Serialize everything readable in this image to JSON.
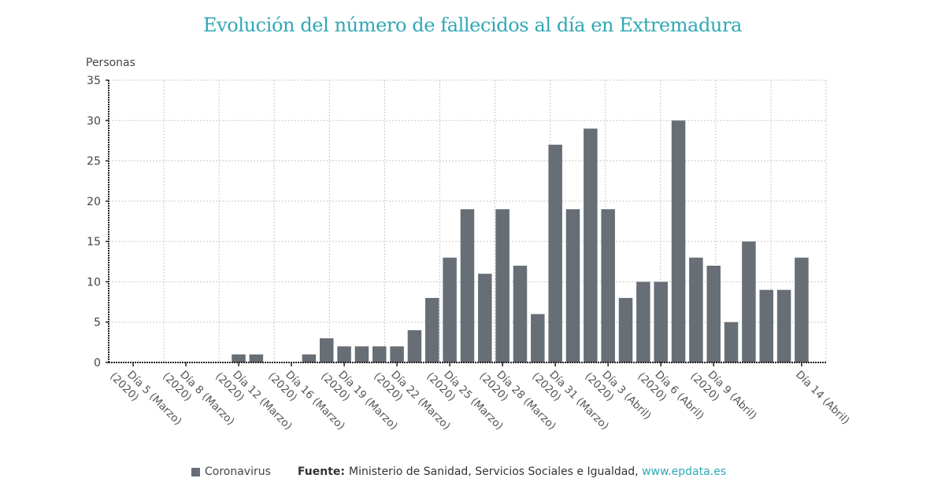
{
  "chart_data": {
    "type": "bar",
    "title": "Evolución del número de fallecidos al día en Extremadura",
    "ylabel": "Personas",
    "xlabel": "",
    "ylim": [
      0,
      35
    ],
    "yticks": [
      0,
      5,
      10,
      15,
      20,
      25,
      30,
      35
    ],
    "grid": true,
    "bar_color": "#676e75",
    "categories": [
      "c0",
      "c1",
      "c2",
      "c3",
      "c4",
      "c5",
      "c6",
      "c7",
      "c8",
      "c9",
      "c10",
      "c11",
      "c12",
      "c13",
      "c14",
      "c15",
      "c16",
      "c17",
      "c18",
      "c19",
      "c20",
      "c21",
      "c22",
      "c23",
      "c24",
      "c25",
      "c26",
      "c27",
      "c28",
      "c29",
      "c30",
      "c31",
      "c32",
      "c33",
      "c34",
      "c35",
      "c36",
      "c37",
      "c38"
    ],
    "tick_labels": [
      {
        "index": 0,
        "line1": "Día 5 (Marzo)",
        "line2": "(2020)"
      },
      {
        "index": 3,
        "line1": "Día 8 (Marzo)",
        "line2": "(2020)"
      },
      {
        "index": 6,
        "line1": "Día 12 (Marzo)",
        "line2": "(2020)"
      },
      {
        "index": 9,
        "line1": "Día 16 (Marzo)",
        "line2": "(2020)"
      },
      {
        "index": 12,
        "line1": "Día 19 (Marzo)",
        "line2": "(2020)"
      },
      {
        "index": 15,
        "line1": "Día 22 (Marzo)",
        "line2": "(2020)"
      },
      {
        "index": 18,
        "line1": "Día 25 (Marzo)",
        "line2": "(2020)"
      },
      {
        "index": 21,
        "line1": "Día 28 (Marzo)",
        "line2": "(2020)"
      },
      {
        "index": 24,
        "line1": "Día 31 (Marzo)",
        "line2": "(2020)"
      },
      {
        "index": 27,
        "line1": "Día 3 (Abril)",
        "line2": "(2020)"
      },
      {
        "index": 30,
        "line1": "Día 6 (Abril)",
        "line2": "(2020)"
      },
      {
        "index": 33,
        "line1": "Día 9 (Abril)",
        "line2": "(2020)"
      },
      {
        "index": 38,
        "line1": "Día 14 (Abril)",
        "line2": ""
      }
    ],
    "series": [
      {
        "name": "Coronavirus",
        "values": [
          0,
          0,
          0,
          0,
          0,
          0,
          1,
          1,
          0,
          0,
          1,
          3,
          2,
          2,
          2,
          2,
          4,
          8,
          13,
          19,
          11,
          19,
          12,
          6,
          27,
          19,
          29,
          19,
          8,
          10,
          10,
          30,
          13,
          12,
          5,
          15,
          9,
          9,
          13
        ]
      }
    ],
    "legend": {
      "position": "bottom-left",
      "entries": [
        "Coronavirus"
      ]
    }
  },
  "footer": {
    "legend_label": "Coronavirus",
    "source_key": "Fuente:",
    "source_text": "Ministerio de Sanidad, Servicios Sociales e Igualdad,",
    "source_link": "www.epdata.es"
  },
  "colors": {
    "title": "#2fa8b5",
    "bar": "#676e75",
    "link": "#2fa8b5"
  }
}
